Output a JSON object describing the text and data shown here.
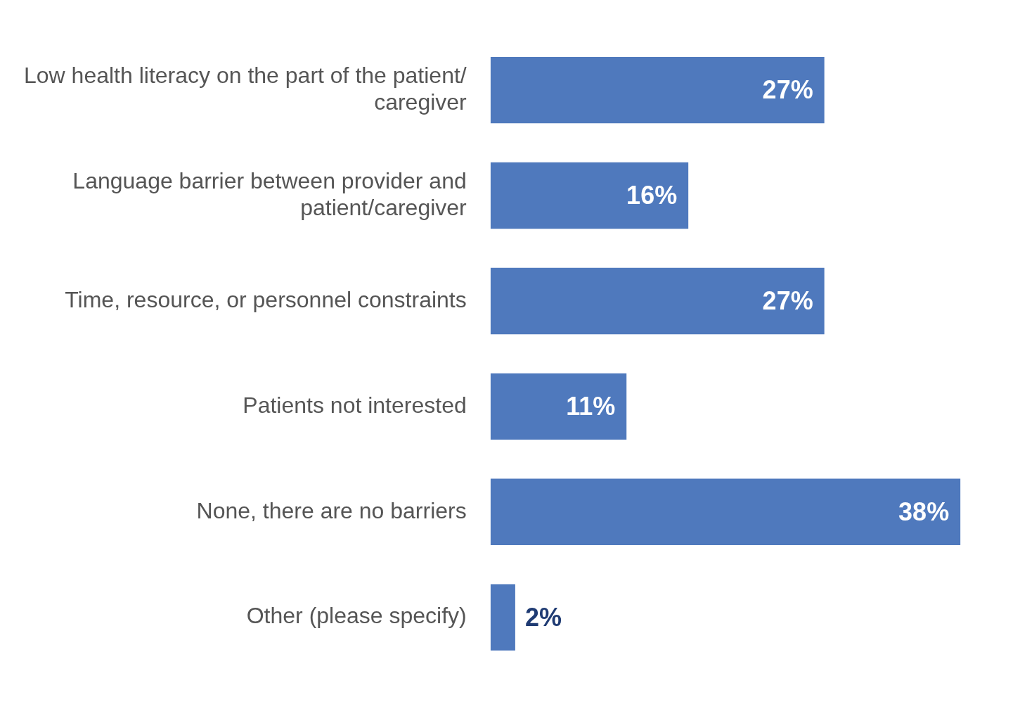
{
  "chart_data": {
    "type": "bar",
    "orientation": "horizontal",
    "categories": [
      "Low health literacy on the part of the patient/ caregiver",
      "Language barrier between provider and patient/caregiver",
      "Time, resource, or personnel constraints",
      "Patients not interested",
      "None, there are no barriers",
      "Other (please specify)"
    ],
    "values": [
      27,
      16,
      27,
      11,
      38,
      2
    ],
    "color": "#4f79bd",
    "value_labels": [
      "27%",
      "16%",
      "27%",
      "11%",
      "38%",
      "2%"
    ],
    "tick_labels": "y",
    "legend": false
  }
}
